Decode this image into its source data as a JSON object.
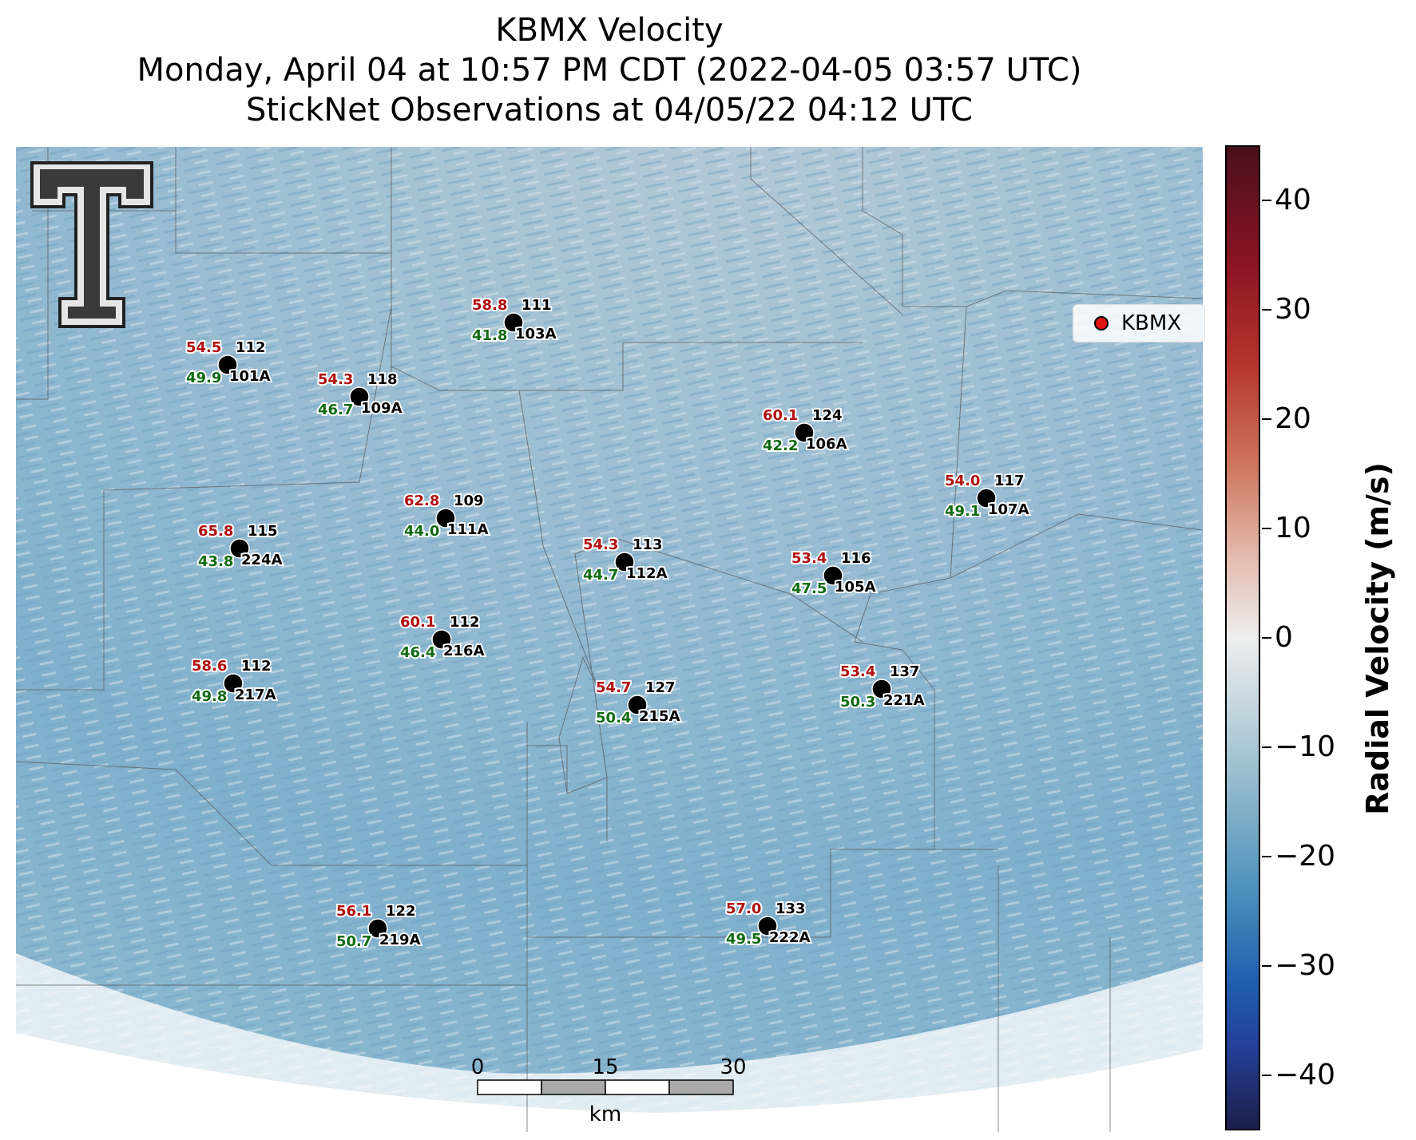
{
  "titles": {
    "line1": "KBMX Velocity",
    "line2": "Monday, April 04 at 10:57 PM CDT (2022-04-05 03:57 UTC)",
    "line3": "StickNet Observations at 04/05/22 04:12 UTC"
  },
  "legend": {
    "label": "KBMX",
    "marker_color": "#e01414"
  },
  "colorbar": {
    "label": "Radial Velocity (m/s)",
    "ticks": [
      "40",
      "30",
      "20",
      "10",
      "0",
      "−10",
      "−20",
      "−30",
      "−40"
    ],
    "tick_values": [
      40,
      30,
      20,
      10,
      0,
      -10,
      -20,
      -30,
      -40
    ],
    "range": [
      -45,
      45
    ],
    "colors": [
      "#1c1f4a",
      "#243e95",
      "#1f5fae",
      "#4a90bd",
      "#86b2c8",
      "#eeeeee",
      "#e4bcb0",
      "#d07a62",
      "#b5342c",
      "#8b1424",
      "#4a0f1c"
    ]
  },
  "scalebar": {
    "ticks": [
      "0",
      "15",
      "30"
    ],
    "unit": "km"
  },
  "stations": [
    {
      "id": "103A",
      "top_red": "58.8",
      "top_black": "111",
      "bottom_green": "41.8"
    },
    {
      "id": "101A",
      "top_red": "54.5",
      "top_black": "112",
      "bottom_green": "49.9"
    },
    {
      "id": "109A",
      "top_red": "54.3",
      "top_black": "118",
      "bottom_green": "46.7"
    },
    {
      "id": "106A",
      "top_red": "60.1",
      "top_black": "124",
      "bottom_green": "42.2"
    },
    {
      "id": "107A",
      "top_red": "54.0",
      "top_black": "117",
      "bottom_green": "49.1"
    },
    {
      "id": "111A",
      "top_red": "62.8",
      "top_black": "109",
      "bottom_green": "44.0"
    },
    {
      "id": "224A",
      "top_red": "65.8",
      "top_black": "115",
      "bottom_green": "43.8"
    },
    {
      "id": "112A",
      "top_red": "54.3",
      "top_black": "113",
      "bottom_green": "44.7"
    },
    {
      "id": "105A",
      "top_red": "53.4",
      "top_black": "116",
      "bottom_green": "47.5"
    },
    {
      "id": "216A",
      "top_red": "60.1",
      "top_black": "112",
      "bottom_green": "46.4"
    },
    {
      "id": "217A",
      "top_red": "58.6",
      "top_black": "112",
      "bottom_green": "49.8"
    },
    {
      "id": "221A",
      "top_red": "53.4",
      "top_black": "137",
      "bottom_green": "50.3"
    },
    {
      "id": "215A",
      "top_red": "54.7",
      "top_black": "127",
      "bottom_green": "50.4"
    },
    {
      "id": "219A",
      "top_red": "56.1",
      "top_black": "122",
      "bottom_green": "50.7"
    },
    {
      "id": "222A",
      "top_red": "57.0",
      "top_black": "133",
      "bottom_green": "49.5"
    }
  ],
  "logo": {
    "alt": "Texas Tech double-T logo"
  }
}
